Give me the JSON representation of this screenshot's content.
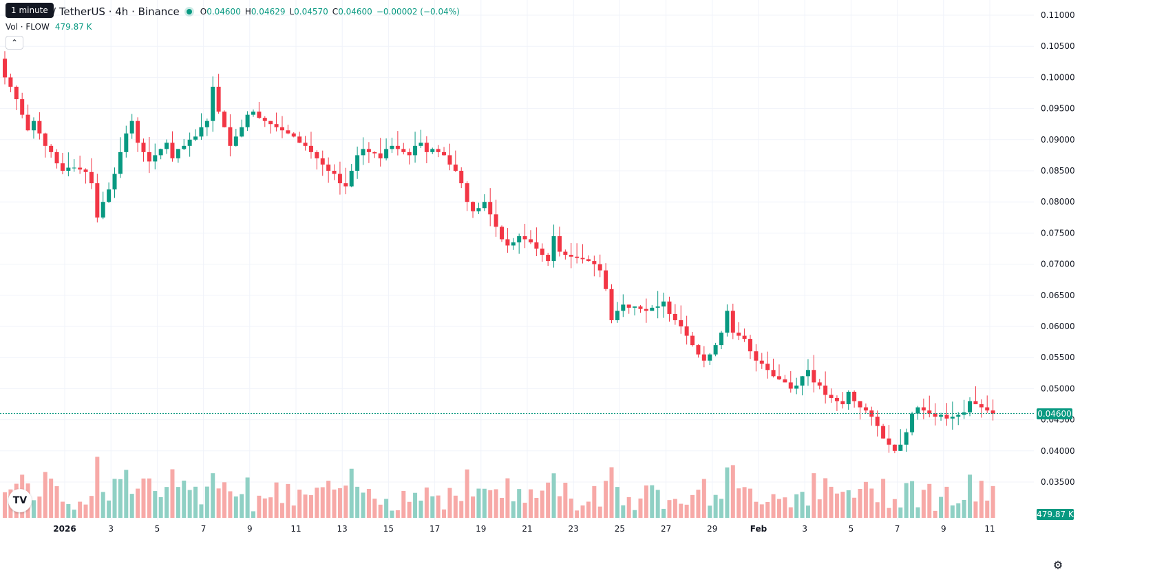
{
  "legend": {
    "title": "/ TetherUS · 4h · Binance",
    "ohlc": [
      {
        "k": "O",
        "v": "0.04600"
      },
      {
        "k": "H",
        "v": "0.04629"
      },
      {
        "k": "L",
        "v": "0.04570"
      },
      {
        "k": "C",
        "v": "0.04600"
      }
    ],
    "change": "−0.00002 (−0.04%)"
  },
  "tooltip": "1 minute",
  "volume": {
    "label": "Vol · FLOW",
    "value": "479.87 K"
  },
  "last_price_label": "0.04600",
  "last_volume_label": "479.87 K",
  "icons": {
    "logo": "tradingview-logo-icon",
    "collapse": "chevron-up-icon",
    "settings": "gear-icon"
  },
  "colors": {
    "up": "#089981",
    "down": "#F23645",
    "up_vol": "#8fd0c4",
    "down_vol": "#f7a9a7",
    "grid": "#f0f3fa"
  },
  "chart_data": {
    "type": "candlestick",
    "interval": "4h",
    "y_axis": {
      "min": 0.035,
      "max": 0.11,
      "ticks": [
        "0.11000",
        "0.10500",
        "0.10000",
        "0.09500",
        "0.09000",
        "0.08500",
        "0.08000",
        "0.07500",
        "0.07000",
        "0.06500",
        "0.06000",
        "0.05500",
        "0.05000",
        "0.04500",
        "0.04000",
        "0.03500"
      ]
    },
    "x_axis": {
      "ticks": [
        "2026",
        "3",
        "5",
        "7",
        "9",
        "11",
        "13",
        "15",
        "17",
        "19",
        "21",
        "23",
        "25",
        "27",
        "29",
        "Feb",
        "3",
        "5",
        "7",
        "9",
        "11"
      ]
    },
    "close_path": [
      0.1,
      0.0985,
      0.0965,
      0.094,
      0.0915,
      0.093,
      0.091,
      0.089,
      0.088,
      0.0862,
      0.085,
      0.0855,
      0.0855,
      0.0852,
      0.0848,
      0.083,
      0.0775,
      0.08,
      0.082,
      0.0845,
      0.088,
      0.091,
      0.093,
      0.0895,
      0.088,
      0.0865,
      0.0875,
      0.0885,
      0.0895,
      0.087,
      0.0885,
      0.089,
      0.09,
      0.0905,
      0.092,
      0.093,
      0.0985,
      0.0945,
      0.092,
      0.089,
      0.0905,
      0.092,
      0.094,
      0.0945,
      0.0935,
      0.093,
      0.0925,
      0.092,
      0.0915,
      0.091,
      0.0905,
      0.0895,
      0.089,
      0.088,
      0.087,
      0.086,
      0.085,
      0.0845,
      0.083,
      0.0825,
      0.085,
      0.0875,
      0.0885,
      0.088,
      0.0878,
      0.087,
      0.0885,
      0.089,
      0.0885,
      0.088,
      0.0875,
      0.089,
      0.0895,
      0.088,
      0.0885,
      0.088,
      0.0875,
      0.086,
      0.085,
      0.083,
      0.08,
      0.0785,
      0.079,
      0.08,
      0.078,
      0.076,
      0.074,
      0.073,
      0.0735,
      0.0745,
      0.074,
      0.0735,
      0.0725,
      0.0715,
      0.0705,
      0.0745,
      0.072,
      0.0715,
      0.0712,
      0.071,
      0.0708,
      0.0705,
      0.07,
      0.069,
      0.066,
      0.061,
      0.0625,
      0.0635,
      0.063,
      0.0632,
      0.0628,
      0.0625,
      0.063,
      0.0632,
      0.064,
      0.062,
      0.061,
      0.06,
      0.0585,
      0.057,
      0.0555,
      0.0545,
      0.0555,
      0.057,
      0.059,
      0.0625,
      0.059,
      0.0585,
      0.058,
      0.056,
      0.0545,
      0.054,
      0.053,
      0.052,
      0.0515,
      0.051,
      0.05,
      0.0505,
      0.052,
      0.053,
      0.051,
      0.0505,
      0.049,
      0.0485,
      0.048,
      0.0475,
      0.0495,
      0.048,
      0.047,
      0.0465,
      0.0455,
      0.044,
      0.042,
      0.041,
      0.04,
      0.041,
      0.043,
      0.046,
      0.047,
      0.0465,
      0.046,
      0.0455,
      0.0458,
      0.0452,
      0.0455,
      0.0458,
      0.0462,
      0.048,
      0.0475,
      0.047,
      0.0465,
      0.046
    ],
    "last_price": 0.046
  }
}
